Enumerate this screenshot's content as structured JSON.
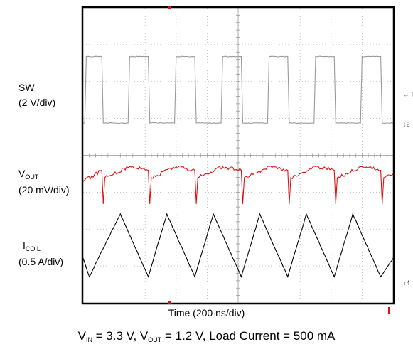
{
  "channels": {
    "sw": {
      "name": "SW",
      "scale": "(2 V/div)"
    },
    "vout": {
      "name_main": "V",
      "name_sub": "OUT",
      "scale": "(20 mV/div)"
    },
    "icoil": {
      "name_main": "I",
      "name_sub": "COIL",
      "scale": "(0.5 A/div)"
    }
  },
  "xlabel": "Time (200 ns/div)",
  "caption": {
    "vin_main": "V",
    "vin_sub": "IN",
    "vin_value": " = 3.3 V, ",
    "vout_main": "V",
    "vout_sub": "OUT",
    "vout_value": " = 1.2 V, Load Current = 500 mA"
  },
  "chart_data": {
    "type": "line",
    "xlabel": "Time (200 ns/div)",
    "x_divisions": 10,
    "y_divisions": 8,
    "x_unit": "ns",
    "x_per_div": 200,
    "x_range": [
      0,
      2000
    ],
    "grid": true,
    "series": [
      {
        "name": "SW",
        "color": "#9a9a9a",
        "unit": "V",
        "per_div": 2,
        "x": [
          0,
          10,
          20,
          120,
          130,
          290,
          300,
          420,
          430,
          590,
          600,
          720,
          730,
          890,
          900,
          1020,
          1030,
          1190,
          1200,
          1320,
          1330,
          1490,
          1500,
          1620,
          1630,
          1790,
          1800,
          1920,
          1930,
          2000
        ],
        "y": [
          0,
          0,
          3.6,
          3.6,
          0,
          0,
          3.6,
          3.6,
          0,
          0,
          3.6,
          3.6,
          0,
          0,
          3.6,
          3.6,
          0,
          0,
          3.6,
          3.6,
          0,
          0,
          3.6,
          3.6,
          0,
          0,
          3.6,
          3.6,
          0,
          0
        ]
      },
      {
        "name": "VOUT",
        "color": "#e01010",
        "unit": "mV (AC)",
        "per_div": 20,
        "x": [
          0,
          120,
          130,
          140,
          300,
          420,
          430,
          440,
          600,
          720,
          730,
          740,
          900,
          1020,
          1030,
          1040,
          1200,
          1320,
          1330,
          1340,
          1500,
          1620,
          1630,
          1640,
          1800,
          1920,
          1930,
          1940,
          2000
        ],
        "y": [
          -2,
          4,
          -14,
          0,
          6,
          4,
          -14,
          0,
          6,
          4,
          -14,
          0,
          6,
          4,
          -14,
          0,
          6,
          4,
          -14,
          0,
          6,
          4,
          -14,
          0,
          6,
          4,
          -14,
          0,
          2
        ]
      },
      {
        "name": "ICOIL",
        "color": "#000000",
        "unit": "A (AC)",
        "per_div": 0.5,
        "x": [
          0,
          40,
          120,
          240,
          420,
          540,
          720,
          840,
          1020,
          1140,
          1320,
          1440,
          1620,
          1740,
          1920,
          2000
        ],
        "y": [
          -0.1,
          -0.35,
          0,
          0.5,
          -0.35,
          0.5,
          -0.35,
          0.5,
          -0.35,
          0.5,
          -0.35,
          0.5,
          -0.35,
          0.5,
          -0.35,
          -0.1
        ]
      }
    ]
  }
}
